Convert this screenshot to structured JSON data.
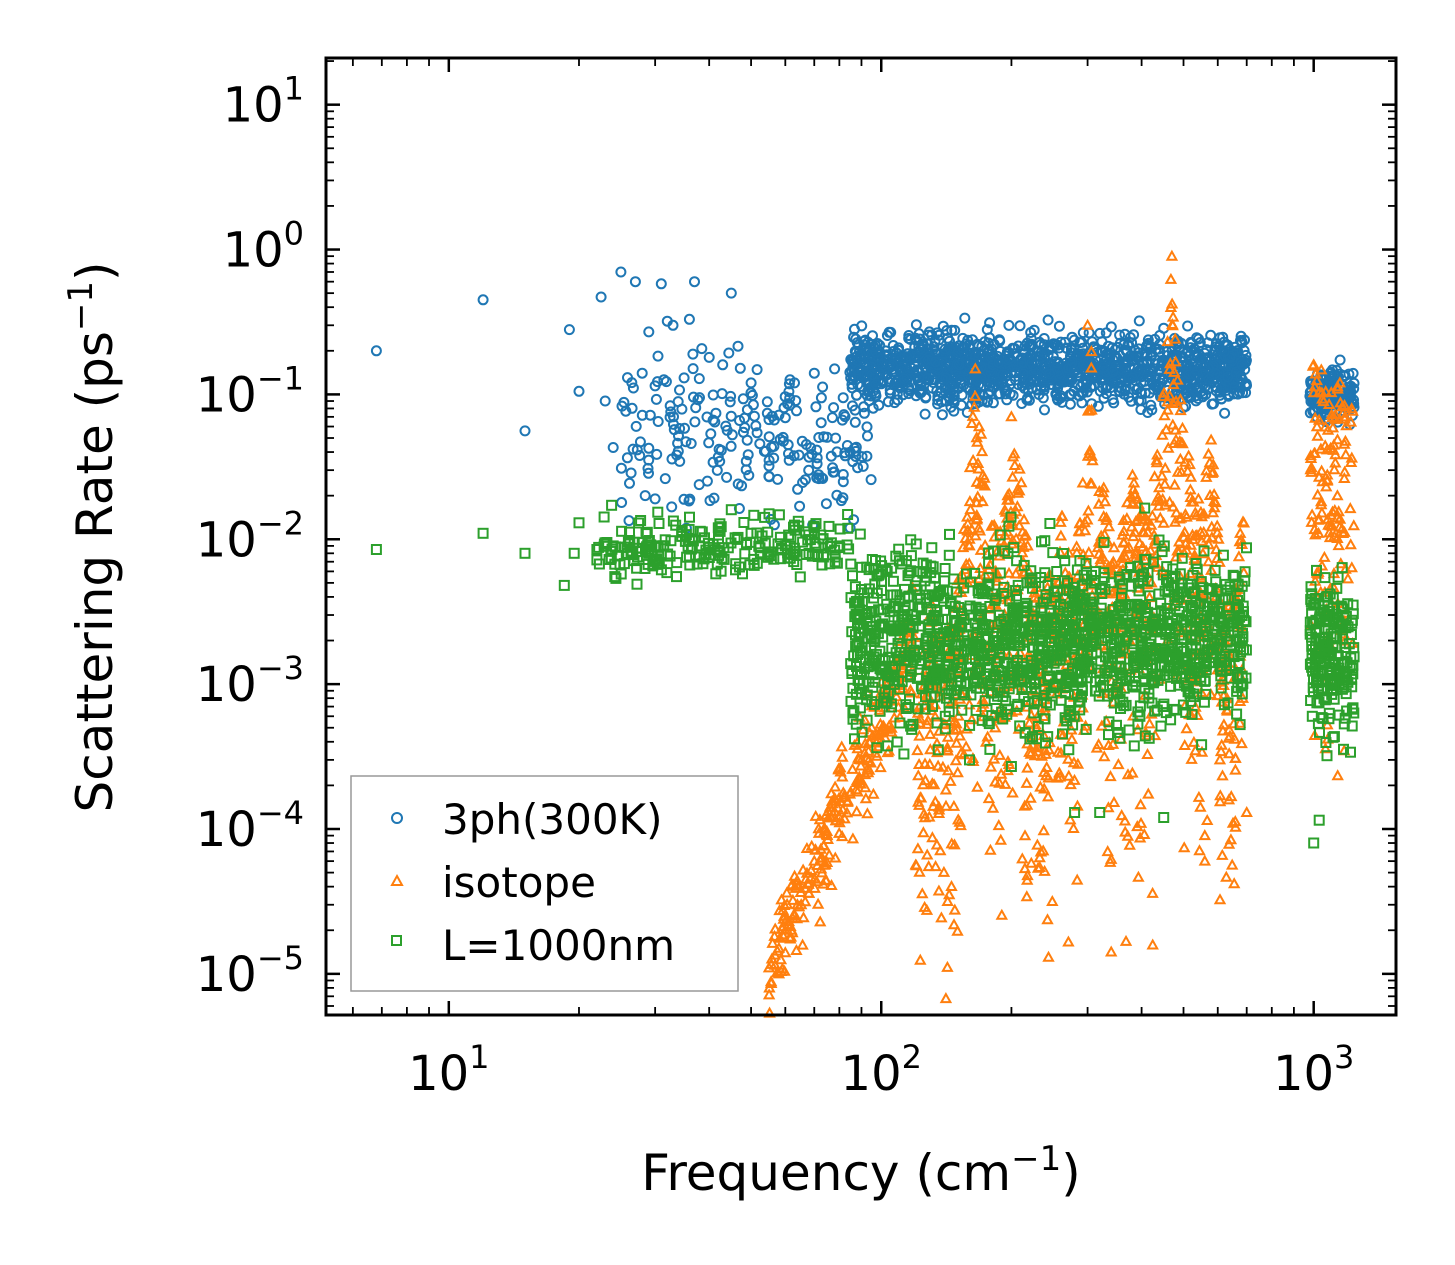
{
  "chart_data": {
    "type": "scatter",
    "xscale": "log",
    "yscale": "log",
    "xlim": [
      5.2,
      1550
    ],
    "ylim": [
      5.2e-06,
      21
    ],
    "xlabel": "Frequency (cm",
    "xlabel_sup": "−1",
    "xlabel_end": ")",
    "ylabel": "Scattering Rate (ps",
    "ylabel_sup": "−1",
    "ylabel_end": ")",
    "x_ticks": [
      {
        "value": 10,
        "base": "10",
        "exp": "1"
      },
      {
        "value": 100,
        "base": "10",
        "exp": "2"
      },
      {
        "value": 1000,
        "base": "10",
        "exp": "3"
      }
    ],
    "y_ticks": [
      {
        "value": 10,
        "base": "10",
        "exp": "1"
      },
      {
        "value": 1,
        "base": "10",
        "exp": "0"
      },
      {
        "value": 0.1,
        "base": "10",
        "exp": "−1"
      },
      {
        "value": 0.01,
        "base": "10",
        "exp": "−2"
      },
      {
        "value": 0.001,
        "base": "10",
        "exp": "−3"
      },
      {
        "value": 0.0001,
        "base": "10",
        "exp": "−4"
      },
      {
        "value": 1e-05,
        "base": "10",
        "exp": "−5"
      }
    ],
    "legend_position": "lower-left",
    "series": [
      {
        "name": "3ph(300K)",
        "marker": "circle",
        "color": "#1f77b4",
        "points": [
          [
            6.8,
            0.2
          ],
          [
            12,
            0.45
          ],
          [
            15,
            0.056
          ],
          [
            19,
            0.28
          ],
          [
            20,
            0.105
          ],
          [
            22.5,
            0.47
          ],
          [
            23,
            0.09
          ],
          [
            24,
            0.043
          ],
          [
            25,
            0.7
          ],
          [
            27,
            0.6
          ],
          [
            28,
            0.14
          ],
          [
            29,
            0.27
          ],
          [
            30,
            0.019
          ],
          [
            30.5,
            0.065
          ],
          [
            31,
            0.58
          ],
          [
            32,
            0.32
          ],
          [
            33,
            0.3
          ],
          [
            35,
            0.13
          ],
          [
            36,
            0.33
          ],
          [
            37,
            0.6
          ],
          [
            38,
            0.095
          ],
          [
            40,
            0.18
          ],
          [
            42,
            0.037
          ],
          [
            43,
            0.16
          ],
          [
            45,
            0.5
          ],
          [
            47,
            0.066
          ],
          [
            50,
            0.12
          ],
          [
            55,
            0.067
          ],
          [
            58,
            0.072
          ],
          [
            63,
            0.12
          ],
          [
            70,
            0.14
          ],
          [
            78,
            0.15
          ],
          [
            85,
            0.13
          ]
        ],
        "clusters": [
          {
            "range": [
              25,
              95
            ],
            "center": [
              0.05,
              0.3
            ],
            "spread": 0.45,
            "count": 220
          },
          {
            "range": [
              85,
              700
            ],
            "center": [
              0.15,
              0.35
            ],
            "spread": 0.2,
            "count": 1400
          },
          {
            "range": [
              980,
              1240
            ],
            "center": [
              0.1,
              0.3
            ],
            "spread": 0.14,
            "count": 160
          }
        ]
      },
      {
        "name": "isotope",
        "marker": "triangle",
        "color": "#ff7f0e",
        "points": [
          [
            55,
            1.1e-05
          ],
          [
            58,
            1e-05
          ],
          [
            60,
            1.4e-05
          ],
          [
            62,
            2e-05
          ],
          [
            64,
            3e-05
          ],
          [
            67,
            4.5e-05
          ],
          [
            70,
            6e-05
          ],
          [
            75,
            9e-05
          ],
          [
            80,
            0.00012
          ],
          [
            85,
            0.00018
          ],
          [
            90,
            0.0003
          ],
          [
            95,
            0.0005
          ],
          [
            100,
            0.0008
          ],
          [
            110,
            0.0015
          ],
          [
            130,
            0.003
          ],
          [
            160,
            0.01
          ],
          [
            165,
            0.15
          ],
          [
            200,
            0.07
          ],
          [
            300,
            0.3
          ],
          [
            470,
            0.9
          ],
          [
            560,
            6e-05
          ],
          [
            560,
            9e-05
          ],
          [
            700,
            0.00013
          ],
          [
            1000,
            0.16
          ],
          [
            1150,
            0.12
          ]
        ],
        "peaks": [
          [
            95,
            0.0008
          ],
          [
            130,
            0.004
          ],
          [
            165,
            0.15
          ],
          [
            205,
            0.06
          ],
          [
            260,
            0.02
          ],
          [
            305,
            0.3
          ],
          [
            380,
            0.03
          ],
          [
            470,
            0.9
          ],
          [
            580,
            0.06
          ],
          [
            680,
            0.015
          ],
          [
            1000,
            0.16
          ],
          [
            1150,
            0.12
          ]
        ]
      },
      {
        "name": "L=1000nm",
        "marker": "square",
        "color": "#2ca02c",
        "points": [
          [
            6.8,
            0.0085
          ],
          [
            12,
            0.011
          ],
          [
            15,
            0.008
          ],
          [
            18.5,
            0.0048
          ],
          [
            19.5,
            0.008
          ],
          [
            20,
            0.013
          ],
          [
            22,
            0.0085
          ],
          [
            24,
            0.009
          ],
          [
            28,
            0.0095
          ],
          [
            30,
            0.0072
          ],
          [
            31,
            0.0078
          ],
          [
            38,
            0.009
          ],
          [
            42,
            0.012
          ],
          [
            45,
            0.016
          ],
          [
            50,
            0.011
          ],
          [
            55,
            0.015
          ],
          [
            60,
            0.009
          ],
          [
            65,
            0.0055
          ],
          [
            70,
            0.012
          ],
          [
            80,
            0.009
          ],
          [
            90,
            0.0045
          ],
          [
            100,
            0.0025
          ],
          [
            160,
            0.0003
          ],
          [
            200,
            0.00027
          ],
          [
            280,
            0.00013
          ],
          [
            320,
            0.00013
          ],
          [
            450,
            0.00012
          ],
          [
            1000,
            8e-05
          ],
          [
            1030,
            0.000115
          ]
        ],
        "clusters": [
          {
            "range": [
              22,
              85
            ],
            "center": [
              0.009,
              0.3
            ],
            "spread": 0.16,
            "count": 220
          },
          {
            "range": [
              85,
              700
            ],
            "center": [
              0.002,
              0.45
            ],
            "spread": 0.5,
            "count": 1500
          },
          {
            "range": [
              980,
              1240
            ],
            "center": [
              0.0015,
              0.45
            ],
            "spread": 0.45,
            "count": 220
          }
        ]
      }
    ]
  }
}
